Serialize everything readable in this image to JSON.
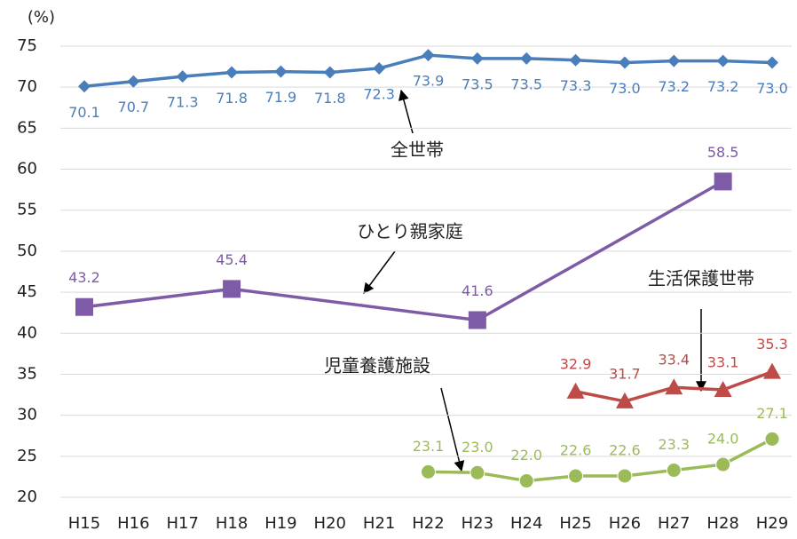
{
  "chart_data": {
    "type": "line",
    "y_unit_label": "(%)",
    "categories": [
      "H15",
      "H16",
      "H17",
      "H18",
      "H19",
      "H20",
      "H21",
      "H22",
      "H23",
      "H24",
      "H25",
      "H26",
      "H27",
      "H28",
      "H29"
    ],
    "ylim": [
      20,
      75
    ],
    "yticks": [
      20,
      25,
      30,
      35,
      40,
      45,
      50,
      55,
      60,
      65,
      70,
      75
    ],
    "grid": true,
    "connect_gaps": true,
    "series": [
      {
        "name": "全世帯",
        "color": "#4a7ebb",
        "marker": "diamond",
        "values": [
          70.1,
          70.7,
          71.3,
          71.8,
          71.9,
          71.8,
          72.3,
          73.9,
          73.5,
          73.5,
          73.3,
          73.0,
          73.2,
          73.2,
          73.0
        ],
        "value_labels": [
          "70.1",
          "70.7",
          "71.3",
          "71.8",
          "71.9",
          "71.8",
          "72.3",
          "73.9",
          "73.5",
          "73.5",
          "73.3",
          "73.0",
          "73.2",
          "73.2",
          "73.0"
        ]
      },
      {
        "name": "ひとり親家庭",
        "color": "#7d5ba6",
        "marker": "square",
        "values": [
          43.2,
          null,
          null,
          45.4,
          null,
          null,
          null,
          null,
          41.6,
          null,
          null,
          null,
          null,
          58.5,
          null
        ],
        "value_labels": [
          "43.2",
          null,
          null,
          "45.4",
          null,
          null,
          null,
          null,
          "41.6",
          null,
          null,
          null,
          null,
          "58.5",
          null
        ]
      },
      {
        "name": "生活保護世帯",
        "color": "#be4b48",
        "marker": "triangle",
        "values": [
          null,
          null,
          null,
          null,
          null,
          null,
          null,
          null,
          null,
          null,
          32.9,
          31.7,
          33.4,
          33.1,
          35.3
        ],
        "value_labels": [
          null,
          null,
          null,
          null,
          null,
          null,
          null,
          null,
          null,
          null,
          "32.9",
          "31.7",
          "33.4",
          "33.1",
          "35.3"
        ]
      },
      {
        "name": "児童養護施設",
        "color": "#9bbb59",
        "marker": "circle",
        "values": [
          null,
          null,
          null,
          null,
          null,
          null,
          null,
          23.1,
          23.0,
          22.0,
          22.6,
          22.6,
          23.3,
          24.0,
          27.1
        ],
        "value_labels": [
          null,
          null,
          null,
          null,
          null,
          null,
          null,
          "23.1",
          "23.0",
          "22.0",
          "22.6",
          "22.6",
          "23.3",
          "24.0",
          "27.1"
        ]
      }
    ]
  }
}
